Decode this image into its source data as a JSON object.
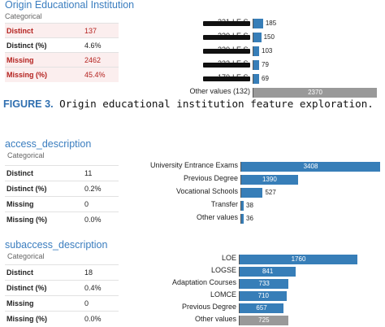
{
  "panel1": {
    "title": "Origin Educational Institution",
    "subtitle": "Categorical",
    "stats": [
      {
        "label": "Distinct",
        "value": "137",
        "alert": true
      },
      {
        "label": "Distinct (%)",
        "value": "4.6%",
        "alert": false
      },
      {
        "label": "Missing",
        "value": "2462",
        "alert": true
      },
      {
        "label": "Missing (%)",
        "value": "45.4%",
        "alert": true
      }
    ],
    "bars": [
      {
        "label": "231-I.E.S.",
        "value": 185,
        "value_label": "185",
        "other": false
      },
      {
        "label": "230-I.E.S.",
        "value": 150,
        "value_label": "150",
        "other": false
      },
      {
        "label": "220-I.E.S.",
        "value": 103,
        "value_label": "103",
        "other": false
      },
      {
        "label": "232-I.E.S.",
        "value": 79,
        "value_label": "79",
        "other": false
      },
      {
        "label": "170-I.E.S.",
        "value": 69,
        "value_label": "69",
        "other": false
      },
      {
        "label": "Other values (132)",
        "value": 2370,
        "value_label": "2370",
        "other": true
      }
    ]
  },
  "caption": {
    "figure_label": "FIGURE 3.",
    "text": " Origin educational institution feature exploration."
  },
  "panel2": {
    "title": "access_description",
    "subtitle": "Categorical",
    "stats": [
      {
        "label": "Distinct",
        "value": "11"
      },
      {
        "label": "Distinct (%)",
        "value": "0.2%"
      },
      {
        "label": "Missing",
        "value": "0"
      },
      {
        "label": "Missing (%)",
        "value": "0.0%"
      }
    ],
    "bars": [
      {
        "label": "University Entrance Exams",
        "value": 3408,
        "value_label": "3408",
        "other": false
      },
      {
        "label": "Previous Degree",
        "value": 1390,
        "value_label": "1390",
        "other": false
      },
      {
        "label": "Vocational Schools",
        "value": 527,
        "value_label": "527",
        "other": false
      },
      {
        "label": "Transfer",
        "value": 38,
        "value_label": "38",
        "other": false
      },
      {
        "label": "Other values",
        "value": 36,
        "value_label": "36",
        "other": false
      }
    ]
  },
  "panel3": {
    "title": "subaccess_description",
    "subtitle": "Categorical",
    "stats": [
      {
        "label": "Distinct",
        "value": "18"
      },
      {
        "label": "Distinct (%)",
        "value": "0.4%"
      },
      {
        "label": "Missing",
        "value": "0"
      },
      {
        "label": "Missing (%)",
        "value": "0.0%"
      }
    ],
    "bars": [
      {
        "label": "LOE",
        "value": 1760,
        "value_label": "1760",
        "other": false
      },
      {
        "label": "LOGSE",
        "value": 841,
        "value_label": "841",
        "other": false
      },
      {
        "label": "Adaptation Courses",
        "value": 733,
        "value_label": "733",
        "other": false
      },
      {
        "label": "LOMCE",
        "value": 710,
        "value_label": "710",
        "other": false
      },
      {
        "label": "Previous Degree",
        "value": 657,
        "value_label": "657",
        "other": false
      },
      {
        "label": "Other values",
        "value": 725,
        "value_label": "725",
        "other": true
      }
    ]
  },
  "chart_data": [
    {
      "type": "bar",
      "orientation": "horizontal",
      "title": "Origin Educational Institution",
      "categories": [
        "231-I.E.S.",
        "230-I.E.S.",
        "220-I.E.S.",
        "232-I.E.S.",
        "170-I.E.S.",
        "Other values (132)"
      ],
      "values": [
        185,
        150,
        103,
        79,
        69,
        2370
      ]
    },
    {
      "type": "bar",
      "orientation": "horizontal",
      "title": "access_description",
      "categories": [
        "University Entrance Exams",
        "Previous Degree",
        "Vocational Schools",
        "Transfer",
        "Other values"
      ],
      "values": [
        3408,
        1390,
        527,
        38,
        36
      ]
    },
    {
      "type": "bar",
      "orientation": "horizontal",
      "title": "subaccess_description",
      "categories": [
        "LOE",
        "LOGSE",
        "Adaptation Courses",
        "LOMCE",
        "Previous Degree",
        "Other values"
      ],
      "values": [
        1760,
        841,
        733,
        710,
        657,
        725
      ]
    }
  ]
}
